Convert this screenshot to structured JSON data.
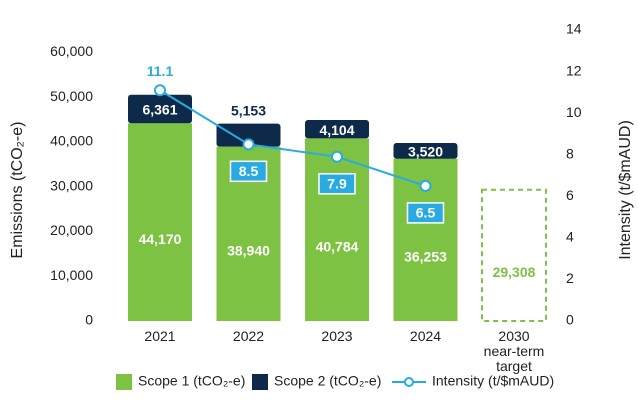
{
  "chart_data": {
    "type": "stacked-bar-line",
    "categories": [
      "2021",
      "2022",
      "2023",
      "2024",
      "2030\nnear-term\ntarget"
    ],
    "series": [
      {
        "name": "Scope 1 (tCO₂-e)",
        "color": "#7dc242",
        "values": [
          44170,
          38940,
          40784,
          36253,
          29308
        ],
        "value_labels": [
          "44,170",
          "38,940",
          "40,784",
          "36,253",
          "29,308"
        ]
      },
      {
        "name": "Scope 2 (tCO₂-e)",
        "color": "#0d2a4a",
        "values": [
          6361,
          5153,
          4104,
          3520,
          null
        ],
        "value_labels": [
          "6,361",
          "5,153",
          "4,104",
          "3,520",
          null
        ]
      },
      {
        "name": "Intensity (t/$mAUD)",
        "color": "#29abe2",
        "axis": "y2",
        "type": "line",
        "values": [
          11.1,
          8.5,
          7.9,
          6.5,
          null
        ]
      }
    ],
    "dashed_categories": [
      4
    ],
    "ylabel": "Emissions (tCO₂-e)",
    "y2label": "Intensity (t/$mAUD)",
    "ylim": [
      0,
      65000
    ],
    "yticks": [
      0,
      {
        "value": 10000,
        "label": "10,000"
      },
      {
        "value": 20000,
        "label": "20,000"
      },
      {
        "value": 30000,
        "label": "30,000"
      },
      {
        "value": 40000,
        "label": "40,000"
      },
      {
        "value": 50000,
        "label": "50,000"
      },
      {
        "value": 60000,
        "label": "60,000"
      }
    ],
    "y2lim": [
      0,
      14
    ],
    "y2ticks": [
      0,
      2,
      4,
      6,
      8,
      10,
      12,
      14
    ]
  }
}
